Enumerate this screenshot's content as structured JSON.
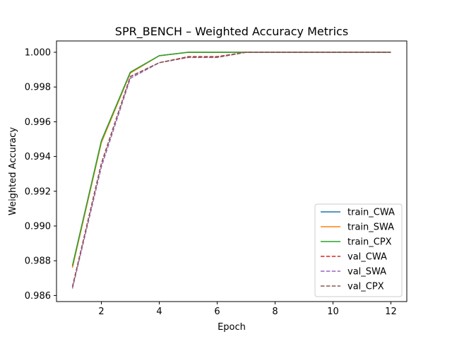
{
  "chart_data": {
    "type": "line",
    "title": "SPR_BENCH – Weighted Accuracy Metrics",
    "xlabel": "Epoch",
    "ylabel": "Weighted Accuracy",
    "xlim": [
      0.45,
      12.55
    ],
    "ylim": [
      0.98565,
      1.00065
    ],
    "xticks": [
      2,
      4,
      6,
      8,
      10,
      12
    ],
    "yticks": [
      0.986,
      0.988,
      0.99,
      0.992,
      0.994,
      0.996,
      0.998,
      1.0
    ],
    "ytick_labels": [
      "0.986",
      "0.988",
      "0.990",
      "0.992",
      "0.994",
      "0.996",
      "0.998",
      "1.000"
    ],
    "grid": false,
    "legend_position": "lower-right",
    "x": [
      1,
      2,
      3,
      4,
      5,
      6,
      7,
      8,
      9,
      10,
      11,
      12
    ],
    "series": [
      {
        "name": "train_CWA",
        "color": "#1f77b4",
        "style": "solid",
        "values": [
          0.9877,
          0.9949,
          0.99885,
          0.9998,
          1.0,
          1.0,
          1.0,
          1.0,
          1.0,
          1.0,
          1.0,
          1.0
        ]
      },
      {
        "name": "train_SWA",
        "color": "#ff7f0e",
        "style": "solid",
        "values": [
          0.9876,
          0.9948,
          0.9988,
          0.9998,
          1.0,
          1.0,
          1.0,
          1.0,
          1.0,
          1.0,
          1.0,
          1.0
        ]
      },
      {
        "name": "train_CPX",
        "color": "#2ca02c",
        "style": "solid",
        "values": [
          0.9877,
          0.9949,
          0.99885,
          0.9998,
          1.0,
          1.0,
          1.0,
          1.0,
          1.0,
          1.0,
          1.0,
          1.0
        ]
      },
      {
        "name": "val_CWA",
        "color": "#d62728",
        "style": "dashed",
        "values": [
          0.9865,
          0.9936,
          0.9986,
          0.9994,
          0.99975,
          0.99975,
          1.0,
          1.0,
          1.0,
          1.0,
          1.0,
          1.0
        ]
      },
      {
        "name": "val_SWA",
        "color": "#9467bd",
        "style": "dashed",
        "values": [
          0.9864,
          0.9934,
          0.9985,
          0.9994,
          0.9997,
          0.9997,
          1.0,
          1.0,
          1.0,
          1.0,
          1.0,
          1.0
        ]
      },
      {
        "name": "val_CPX",
        "color": "#8c564b",
        "style": "dashed",
        "values": [
          0.9865,
          0.9936,
          0.9986,
          0.9994,
          0.99972,
          0.99972,
          1.0,
          1.0,
          1.0,
          1.0,
          1.0,
          1.0
        ]
      }
    ]
  }
}
